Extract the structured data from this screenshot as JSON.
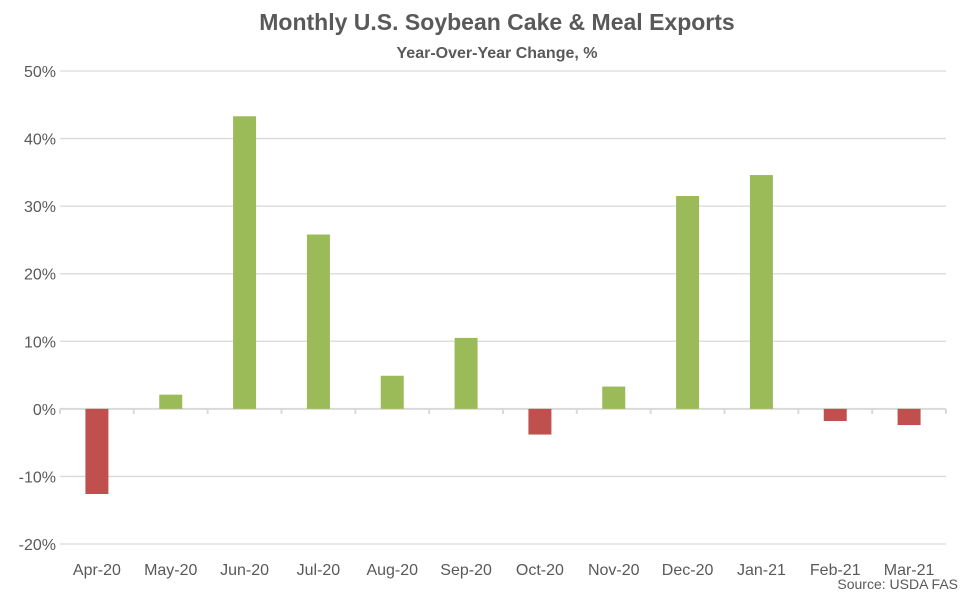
{
  "chart_data": {
    "type": "bar",
    "title": "Monthly U.S. Soybean Cake & Meal Exports",
    "subtitle": "Year-Over-Year Change, %",
    "source": "Source: USDA FAS",
    "categories": [
      "Apr-20",
      "May-20",
      "Jun-20",
      "Jul-20",
      "Aug-20",
      "Sep-20",
      "Oct-20",
      "Nov-20",
      "Dec-20",
      "Jan-21",
      "Feb-21",
      "Mar-21"
    ],
    "values": [
      -12.6,
      2.1,
      43.3,
      25.8,
      4.9,
      10.5,
      -3.8,
      3.3,
      31.5,
      34.6,
      -1.8,
      -2.4
    ],
    "ylim": [
      -20,
      50
    ],
    "yticks": [
      -20,
      -10,
      0,
      10,
      20,
      30,
      40,
      50
    ],
    "ytick_labels": [
      "-20%",
      "-10%",
      "0%",
      "10%",
      "20%",
      "30%",
      "40%",
      "50%"
    ],
    "grid": true,
    "colors": {
      "positive": "#9BBB59",
      "negative": "#C0504D",
      "grid": "#D9D9D9",
      "text": "#595959"
    }
  }
}
